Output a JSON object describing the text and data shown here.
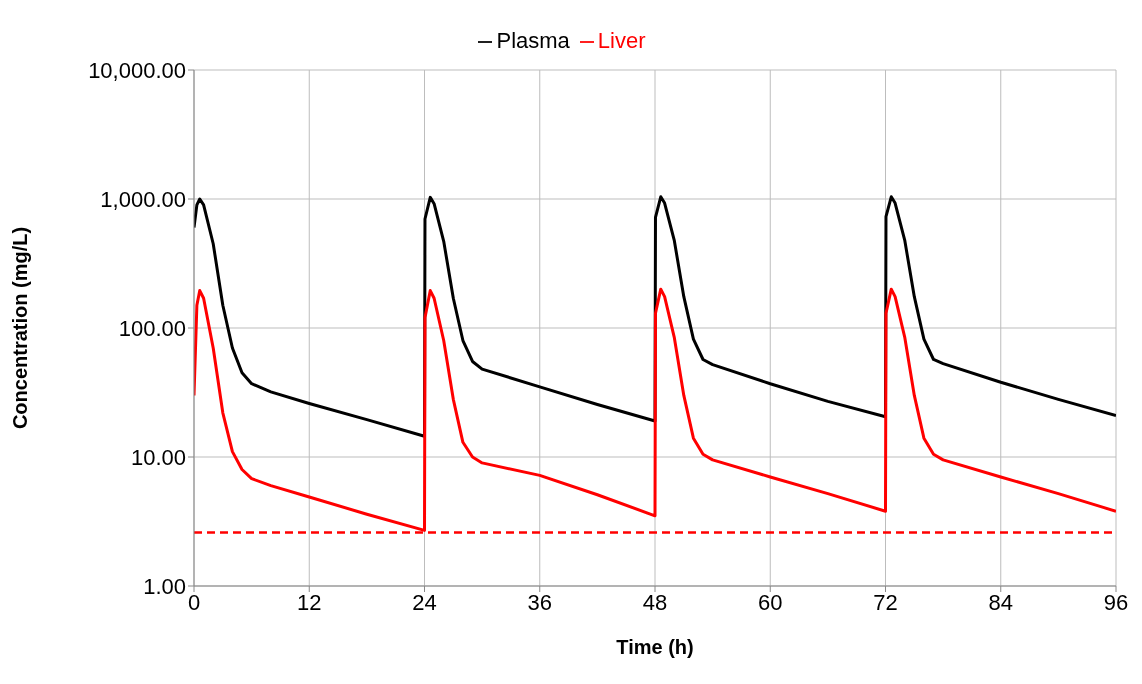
{
  "chart_data": {
    "type": "line",
    "xlabel": "Time (h)",
    "ylabel": "Concentration (mg/L)",
    "log": "y",
    "grid": true,
    "legend": "top",
    "marker": "none",
    "line_style": "solid",
    "x": [
      0,
      0.3,
      0.6,
      1,
      2,
      3,
      4,
      5,
      6,
      8,
      12,
      18,
      24,
      24.05,
      24.6,
      25,
      26,
      27,
      28,
      29,
      30,
      36,
      42,
      48,
      48.05,
      48.6,
      49,
      50,
      51,
      52,
      53,
      54,
      60,
      66,
      72,
      72.05,
      72.6,
      73,
      74,
      75,
      76,
      77,
      78,
      84,
      90,
      96
    ],
    "xlim": [
      0,
      96
    ],
    "xticks": [
      0,
      12,
      24,
      36,
      48,
      60,
      72,
      84,
      96
    ],
    "ylim": [
      1,
      10000
    ],
    "yticks": [
      {
        "value": 1,
        "label": "1.00"
      },
      {
        "value": 10,
        "label": "10.00"
      },
      {
        "value": 100,
        "label": "100.00"
      },
      {
        "value": 1000,
        "label": "1,000.00"
      },
      {
        "value": 10000,
        "label": "10,000.00"
      }
    ],
    "series": [
      {
        "name": "Plasma",
        "color": "#000000",
        "values": [
          600,
          900,
          1000,
          900,
          450,
          150,
          70,
          45,
          37,
          32,
          26,
          19.5,
          14.5,
          700,
          1030,
          920,
          470,
          170,
          80,
          55,
          48,
          35,
          25.5,
          19,
          720,
          1040,
          930,
          480,
          175,
          82,
          57,
          52,
          37,
          27,
          20.5,
          730,
          1040,
          930,
          480,
          175,
          82,
          57,
          53,
          38,
          28,
          21
        ]
      },
      {
        "name": "Liver",
        "color": "#ff0000",
        "values": [
          30,
          150,
          195,
          170,
          70,
          22,
          11,
          8,
          6.8,
          6,
          4.9,
          3.6,
          2.7,
          120,
          195,
          170,
          80,
          28,
          13,
          10,
          9,
          7.2,
          5.1,
          3.5,
          130,
          200,
          175,
          85,
          30,
          14,
          10.5,
          9.5,
          7,
          5.2,
          3.8,
          130,
          200,
          175,
          85,
          30,
          14,
          10.5,
          9.5,
          7,
          5.2,
          3.8
        ]
      }
    ],
    "ref_lines": [
      {
        "axis": "y",
        "value": 2.6,
        "color": "#ff0000",
        "line_style": "dashed"
      }
    ]
  }
}
